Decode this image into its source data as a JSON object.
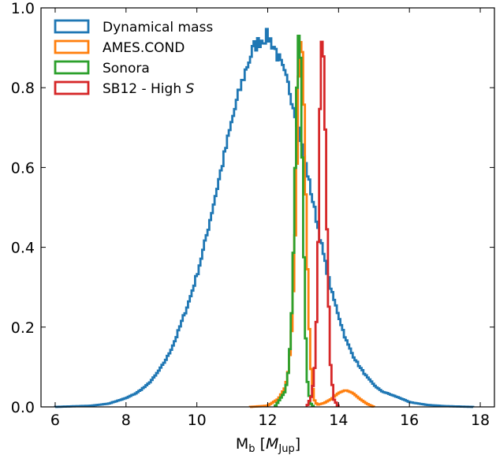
{
  "chart_data": {
    "type": "histogram",
    "title": "",
    "xlabel": "M_b [M_Jup]",
    "xlabel_parts": {
      "main": "M",
      "main_sub": "b",
      "open": " [",
      "unit": "M",
      "unit_sub": "Jup",
      "close": "]"
    },
    "ylabel": "",
    "xlim": [
      5.6,
      18.4
    ],
    "ylim": [
      0.0,
      1.0
    ],
    "xticks": [
      6,
      8,
      10,
      12,
      14,
      16,
      18
    ],
    "yticks": [
      0.0,
      0.2,
      0.4,
      0.6,
      0.8,
      1.0
    ],
    "xtick_labels": [
      "6",
      "8",
      "10",
      "12",
      "14",
      "16",
      "18"
    ],
    "ytick_labels": [
      "0.0",
      "0.2",
      "0.4",
      "0.6",
      "0.8",
      "1.0"
    ],
    "grid": false,
    "legend_position": "top-left",
    "series": [
      {
        "name": "Dynamical mass",
        "color": "#1f77b4",
        "points": [
          [
            6.0,
            0.0
          ],
          [
            7.0,
            0.003
          ],
          [
            7.5,
            0.008
          ],
          [
            8.0,
            0.022
          ],
          [
            8.3,
            0.035
          ],
          [
            8.6,
            0.055
          ],
          [
            8.8,
            0.075
          ],
          [
            9.0,
            0.1
          ],
          [
            9.2,
            0.13
          ],
          [
            9.4,
            0.17
          ],
          [
            9.6,
            0.22
          ],
          [
            9.8,
            0.27
          ],
          [
            10.0,
            0.33
          ],
          [
            10.2,
            0.4
          ],
          [
            10.4,
            0.48
          ],
          [
            10.6,
            0.56
          ],
          [
            10.8,
            0.64
          ],
          [
            11.0,
            0.72
          ],
          [
            11.2,
            0.79
          ],
          [
            11.4,
            0.85
          ],
          [
            11.6,
            0.9
          ],
          [
            11.8,
            0.92
          ],
          [
            12.0,
            0.93
          ],
          [
            12.2,
            0.9
          ],
          [
            12.4,
            0.85
          ],
          [
            12.6,
            0.8
          ],
          [
            12.8,
            0.73
          ],
          [
            13.0,
            0.64
          ],
          [
            13.2,
            0.55
          ],
          [
            13.4,
            0.46
          ],
          [
            13.6,
            0.37
          ],
          [
            13.8,
            0.29
          ],
          [
            14.0,
            0.23
          ],
          [
            14.2,
            0.17
          ],
          [
            14.4,
            0.13
          ],
          [
            14.6,
            0.1
          ],
          [
            14.8,
            0.075
          ],
          [
            15.0,
            0.055
          ],
          [
            15.2,
            0.04
          ],
          [
            15.5,
            0.03
          ],
          [
            15.8,
            0.02
          ],
          [
            16.0,
            0.012
          ],
          [
            16.5,
            0.005
          ],
          [
            17.0,
            0.002
          ],
          [
            17.8,
            0.0
          ]
        ]
      },
      {
        "name": "AMES.COND",
        "color": "#ff7f0e",
        "points": [
          [
            11.5,
            0.0
          ],
          [
            12.0,
            0.003
          ],
          [
            12.3,
            0.02
          ],
          [
            12.5,
            0.05
          ],
          [
            12.6,
            0.1
          ],
          [
            12.7,
            0.22
          ],
          [
            12.8,
            0.5
          ],
          [
            12.88,
            0.85
          ],
          [
            12.95,
            0.95
          ],
          [
            13.02,
            0.78
          ],
          [
            13.1,
            0.42
          ],
          [
            13.2,
            0.12
          ],
          [
            13.3,
            0.02
          ],
          [
            13.4,
            0.005
          ],
          [
            13.6,
            0.01
          ],
          [
            13.8,
            0.02
          ],
          [
            14.0,
            0.035
          ],
          [
            14.2,
            0.042
          ],
          [
            14.4,
            0.035
          ],
          [
            14.6,
            0.02
          ],
          [
            14.8,
            0.008
          ],
          [
            15.0,
            0.0
          ]
        ]
      },
      {
        "name": "Sonora",
        "color": "#2ca02c",
        "points": [
          [
            12.2,
            0.0
          ],
          [
            12.5,
            0.04
          ],
          [
            12.6,
            0.1
          ],
          [
            12.7,
            0.28
          ],
          [
            12.78,
            0.62
          ],
          [
            12.86,
            0.94
          ],
          [
            12.92,
            0.9
          ],
          [
            12.98,
            0.6
          ],
          [
            13.04,
            0.3
          ],
          [
            13.1,
            0.08
          ],
          [
            13.2,
            0.01
          ],
          [
            13.3,
            0.0
          ]
        ]
      },
      {
        "name": "SB12 - High S",
        "color": "#d62728",
        "points": [
          [
            13.1,
            0.0
          ],
          [
            13.25,
            0.03
          ],
          [
            13.35,
            0.12
          ],
          [
            13.42,
            0.38
          ],
          [
            13.48,
            0.78
          ],
          [
            13.54,
            0.96
          ],
          [
            13.6,
            0.82
          ],
          [
            13.68,
            0.42
          ],
          [
            13.76,
            0.12
          ],
          [
            13.86,
            0.02
          ],
          [
            14.0,
            0.0
          ]
        ]
      }
    ],
    "legend": [
      {
        "label": "Dynamical mass",
        "color": "#1f77b4"
      },
      {
        "label": "AMES.COND",
        "color": "#ff7f0e"
      },
      {
        "label": "Sonora",
        "color": "#2ca02c"
      },
      {
        "label": "SB12 - High ",
        "label_italic": "S",
        "color": "#d62728"
      }
    ]
  }
}
